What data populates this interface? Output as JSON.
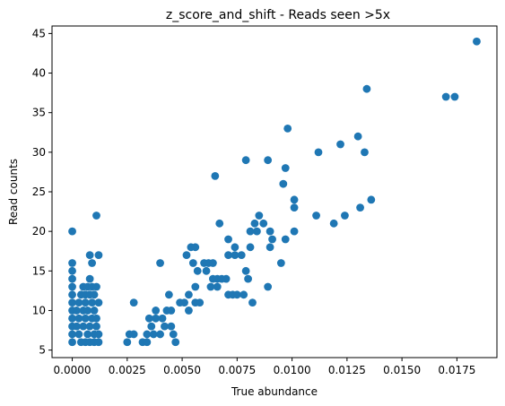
{
  "chart_data": {
    "type": "scatter",
    "title": "z_score_and_shift - Reads seen >5x",
    "xlabel": "True abundance",
    "ylabel": "Read counts",
    "xlim": [
      -0.00092,
      0.01932
    ],
    "ylim": [
      4.05,
      45.95
    ],
    "grid": false,
    "point_color": "#1f77b4",
    "x_ticks": [
      0.0,
      0.0025,
      0.005,
      0.0075,
      0.01,
      0.0125,
      0.015,
      0.0175
    ],
    "x_tick_labels": [
      "0.0000",
      "0.0025",
      "0.0050",
      "0.0075",
      "0.0100",
      "0.0125",
      "0.0150",
      "0.0175"
    ],
    "y_ticks": [
      5,
      10,
      15,
      20,
      25,
      30,
      35,
      40,
      45
    ],
    "y_tick_labels": [
      "5",
      "10",
      "15",
      "20",
      "25",
      "30",
      "35",
      "40",
      "45"
    ],
    "series": [
      {
        "points": [
          [
            0.0184,
            44
          ],
          [
            0.0134,
            38
          ],
          [
            0.017,
            37
          ],
          [
            0.0174,
            37
          ],
          [
            0.0098,
            33
          ],
          [
            0.013,
            32
          ],
          [
            0.0122,
            31
          ],
          [
            0.0112,
            30
          ],
          [
            0.0133,
            30
          ],
          [
            0.0079,
            29
          ],
          [
            0.0089,
            29
          ],
          [
            0.0097,
            28
          ],
          [
            0.0065,
            27
          ],
          [
            0.0096,
            26
          ],
          [
            0.0101,
            24
          ],
          [
            0.0136,
            24
          ],
          [
            0.0101,
            23
          ],
          [
            0.0131,
            23
          ],
          [
            0.0085,
            22
          ],
          [
            0.0111,
            22
          ],
          [
            0.0124,
            22
          ],
          [
            0.0011,
            22
          ],
          [
            0.0067,
            21
          ],
          [
            0.0083,
            21
          ],
          [
            0.0087,
            21
          ],
          [
            0.0119,
            21
          ],
          [
            0.0,
            20
          ],
          [
            0.0081,
            20
          ],
          [
            0.0084,
            20
          ],
          [
            0.009,
            20
          ],
          [
            0.0101,
            20
          ],
          [
            0.0071,
            19
          ],
          [
            0.0091,
            19
          ],
          [
            0.0097,
            19
          ],
          [
            0.0054,
            18
          ],
          [
            0.0056,
            18
          ],
          [
            0.0074,
            18
          ],
          [
            0.0081,
            18
          ],
          [
            0.009,
            18
          ],
          [
            0.0008,
            17
          ],
          [
            0.0012,
            17
          ],
          [
            0.0052,
            17
          ],
          [
            0.0071,
            17
          ],
          [
            0.0074,
            17
          ],
          [
            0.0077,
            17
          ],
          [
            0.0,
            16
          ],
          [
            0.0009,
            16
          ],
          [
            0.004,
            16
          ],
          [
            0.0055,
            16
          ],
          [
            0.006,
            16
          ],
          [
            0.0062,
            16
          ],
          [
            0.0064,
            16
          ],
          [
            0.0095,
            16
          ],
          [
            0.0,
            15
          ],
          [
            0.0057,
            15
          ],
          [
            0.0061,
            15
          ],
          [
            0.0079,
            15
          ],
          [
            0.0,
            14
          ],
          [
            0.0008,
            14
          ],
          [
            0.0064,
            14
          ],
          [
            0.0066,
            14
          ],
          [
            0.0068,
            14
          ],
          [
            0.007,
            14
          ],
          [
            0.008,
            14
          ],
          [
            0.0,
            13
          ],
          [
            0.0005,
            13
          ],
          [
            0.0007,
            13
          ],
          [
            0.0009,
            13
          ],
          [
            0.0011,
            13
          ],
          [
            0.0056,
            13
          ],
          [
            0.0063,
            13
          ],
          [
            0.0066,
            13
          ],
          [
            0.0089,
            13
          ],
          [
            0.0,
            12
          ],
          [
            0.0004,
            12
          ],
          [
            0.0006,
            12
          ],
          [
            0.0008,
            12
          ],
          [
            0.001,
            12
          ],
          [
            0.0044,
            12
          ],
          [
            0.0053,
            12
          ],
          [
            0.0071,
            12
          ],
          [
            0.0073,
            12
          ],
          [
            0.0075,
            12
          ],
          [
            0.0078,
            12
          ],
          [
            0.0,
            11
          ],
          [
            0.0003,
            11
          ],
          [
            0.0006,
            11
          ],
          [
            0.0009,
            11
          ],
          [
            0.0012,
            11
          ],
          [
            0.0028,
            11
          ],
          [
            0.0049,
            11
          ],
          [
            0.0051,
            11
          ],
          [
            0.0056,
            11
          ],
          [
            0.0058,
            11
          ],
          [
            0.0082,
            11
          ],
          [
            0.0,
            10
          ],
          [
            0.0002,
            10
          ],
          [
            0.0005,
            10
          ],
          [
            0.0007,
            10
          ],
          [
            0.001,
            10
          ],
          [
            0.0038,
            10
          ],
          [
            0.0043,
            10
          ],
          [
            0.0045,
            10
          ],
          [
            0.0053,
            10
          ],
          [
            0.0,
            9
          ],
          [
            0.0003,
            9
          ],
          [
            0.0006,
            9
          ],
          [
            0.0009,
            9
          ],
          [
            0.0011,
            9
          ],
          [
            0.0035,
            9
          ],
          [
            0.0038,
            9
          ],
          [
            0.0041,
            9
          ],
          [
            0.0,
            8
          ],
          [
            0.0002,
            8
          ],
          [
            0.0005,
            8
          ],
          [
            0.0008,
            8
          ],
          [
            0.0011,
            8
          ],
          [
            0.0036,
            8
          ],
          [
            0.0042,
            8
          ],
          [
            0.0045,
            8
          ],
          [
            0.0,
            7
          ],
          [
            0.0003,
            7
          ],
          [
            0.0007,
            7
          ],
          [
            0.001,
            7
          ],
          [
            0.0012,
            7
          ],
          [
            0.0026,
            7
          ],
          [
            0.0028,
            7
          ],
          [
            0.0034,
            7
          ],
          [
            0.0037,
            7
          ],
          [
            0.004,
            7
          ],
          [
            0.0046,
            7
          ],
          [
            0.0,
            6
          ],
          [
            0.0004,
            6
          ],
          [
            0.0006,
            6
          ],
          [
            0.0008,
            6
          ],
          [
            0.001,
            6
          ],
          [
            0.0012,
            6
          ],
          [
            0.0025,
            6
          ],
          [
            0.0032,
            6
          ],
          [
            0.0034,
            6
          ],
          [
            0.0047,
            6
          ]
        ]
      }
    ]
  }
}
